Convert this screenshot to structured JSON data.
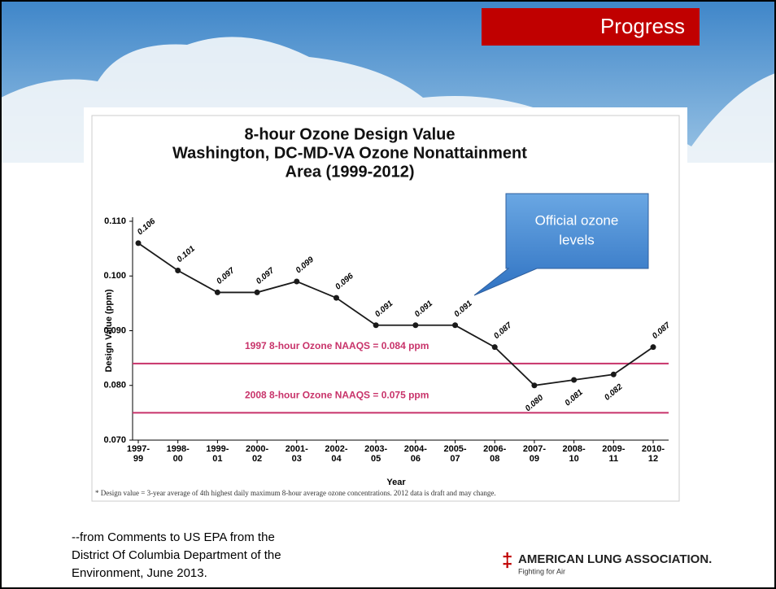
{
  "slide": {
    "banner": "Progress",
    "callout": "Official ozone\nlevels",
    "source": "--from Comments to US EPA from the\nDistrict Of Columbia Department of the\nEnvironment, June 2013.",
    "logo": "AMERICAN LUNG ASSOCIATION.",
    "logo_tagline": "Fighting for Air"
  },
  "chart_data": {
    "type": "line",
    "title": "8-hour Ozone Design Value\nWashington, DC-MD-VA Ozone Nonattainment\nArea (1999-2012)",
    "x_label": "Year",
    "y_label": "Design Value (ppm)",
    "footnote": "* Design value = 3-year average of 4th highest daily maximum 8-hour average ozone concentrations. 2012 data is draft and may change.",
    "categories": [
      "1997-\n99",
      "1998-\n00",
      "1999-\n01",
      "2000-\n02",
      "2001-\n03",
      "2002-\n04",
      "2003-\n05",
      "2004-\n06",
      "2005-\n07",
      "2006-\n08",
      "2007-\n09",
      "2008-\n10",
      "2009-\n11",
      "2010-\n12"
    ],
    "values": [
      0.106,
      0.101,
      0.097,
      0.097,
      0.099,
      0.096,
      0.091,
      0.091,
      0.091,
      0.087,
      0.08,
      0.081,
      0.082,
      0.087
    ],
    "value_labels": [
      "0.106",
      "0.101",
      "0.097",
      "0.097",
      "0.099",
      "0.096",
      "0.091",
      "0.091",
      "0.091",
      "0.087",
      "0.080",
      "0.081",
      "0.082",
      "0.087"
    ],
    "color": "#1a1a1a",
    "ylim": [
      0.07,
      0.11
    ],
    "yticks": [
      {
        "value": 0.07,
        "label": "0.070"
      },
      {
        "value": 0.08,
        "label": "0.080"
      },
      {
        "value": 0.09,
        "label": "0.090"
      },
      {
        "value": 0.1,
        "label": "0.100"
      },
      {
        "value": 0.11,
        "label": "0.110"
      }
    ],
    "reference_lines": [
      {
        "value": 0.084,
        "label": "1997 8-hour Ozone NAAQS = 0.084 ppm",
        "color": "#c8336a"
      },
      {
        "value": 0.075,
        "label": "2008 8-hour Ozone NAAQS = 0.075 ppm",
        "color": "#c8336a"
      }
    ]
  }
}
